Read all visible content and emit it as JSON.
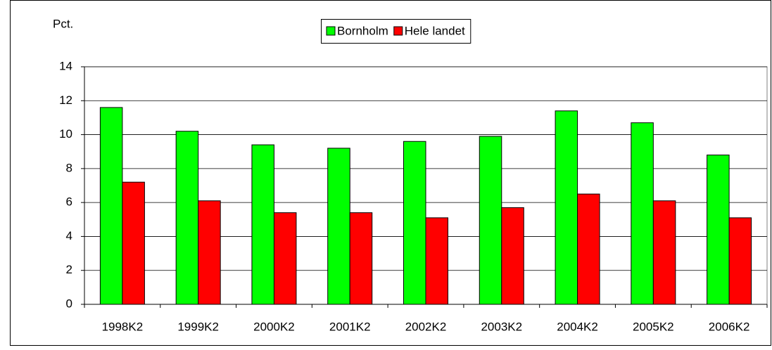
{
  "chart_data": {
    "type": "bar",
    "y_label": "Pct.",
    "categories": [
      "1998K2",
      "1999K2",
      "2000K2",
      "2001K2",
      "2002K2",
      "2003K2",
      "2004K2",
      "2005K2",
      "2006K2"
    ],
    "series": [
      {
        "name": "Bornholm",
        "color": "#00ff00",
        "values": [
          11.6,
          10.2,
          9.4,
          9.2,
          9.6,
          9.9,
          11.4,
          10.7,
          8.8
        ]
      },
      {
        "name": "Hele landet",
        "color": "#ff0000",
        "values": [
          7.2,
          6.1,
          5.4,
          5.4,
          5.1,
          5.7,
          6.5,
          6.1,
          5.1
        ]
      }
    ],
    "ylim": [
      0,
      14
    ],
    "yticks": [
      0,
      2,
      4,
      6,
      8,
      10,
      12,
      14
    ],
    "grid": true,
    "legend": "top"
  }
}
